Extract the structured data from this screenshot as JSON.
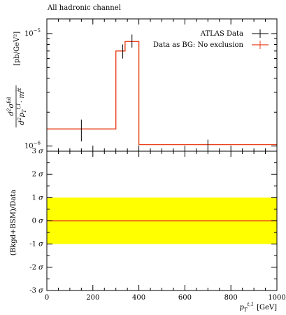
{
  "chart_data": [
    {
      "type": "line",
      "panel": "main",
      "title": "All hadronic channel",
      "xlim": [
        0,
        1000
      ],
      "ylim": [
        9e-07,
        1.35e-05
      ],
      "yscale": "log",
      "ylabel": {
        "num_base": "d",
        "num_sup": "2",
        "num_sigma": "σ",
        "num_sigma_sup": "fid",
        "den_base": "d",
        "den_sup": "2",
        "den_p": "p",
        "den_p_sub": "T",
        "den_p_sup": "t,1",
        "den_dot": "· m",
        "den_m_sup": "t̅t",
        "unit": "[pb/GeV²]"
      },
      "yticks": [
        {
          "value": 1e-06,
          "base": "10",
          "exp": "−6"
        },
        {
          "value": 1e-05,
          "base": "10",
          "exp": "−5"
        }
      ],
      "legend": {
        "position": "top-right",
        "entries": [
          {
            "label": "ATLAS Data",
            "color": "#000000"
          },
          {
            "label": "Data as BG: No exclusion",
            "color": "#e8401c"
          }
        ]
      },
      "series": [
        {
          "name": "ATLAS Data",
          "color": "#000000",
          "points": [
            {
              "x": 150,
              "y": 1.42e-06,
              "ylo": 1.1e-06,
              "yhi": 1.72e-06
            },
            {
              "x": 330,
              "y": 7e-06,
              "ylo": 6e-06,
              "yhi": 8e-06
            },
            {
              "x": 370,
              "y": 8.5e-06,
              "ylo": 7.5e-06,
              "yhi": 9.8e-06
            },
            {
              "x": 700,
              "y": 1.03e-06,
              "ylo": 9.4e-07,
              "yhi": 1.14e-06
            }
          ]
        },
        {
          "name": "Data as BG: No exclusion",
          "color": "#e8401c",
          "bins": [
            {
              "xlo": 0,
              "xhi": 300,
              "y": 1.42e-06
            },
            {
              "xlo": 300,
              "xhi": 340,
              "y": 7e-06
            },
            {
              "xlo": 340,
              "xhi": 400,
              "y": 8.5e-06
            },
            {
              "xlo": 400,
              "xhi": 1000,
              "y": 1.03e-06
            }
          ]
        }
      ]
    },
    {
      "type": "line",
      "panel": "ratio",
      "xlim": [
        0,
        1000
      ],
      "ylim": [
        -3,
        3
      ],
      "ylabel": "(Bkgd+BSM)/Data",
      "xlabel": {
        "base": "p",
        "sub": "T",
        "sup": "t,1",
        "unit": "[GeV]"
      },
      "xticks": [
        0,
        200,
        400,
        600,
        800,
        1000
      ],
      "yticks": [
        {
          "value": 3,
          "label": "3"
        },
        {
          "value": 2,
          "label": "2"
        },
        {
          "value": 1,
          "label": "1"
        },
        {
          "value": 0,
          "label": "0"
        },
        {
          "value": -1,
          "label": "-1"
        },
        {
          "value": -2,
          "label": "-2"
        },
        {
          "value": -3,
          "label": "-3"
        }
      ],
      "sigma_symbol": "σ",
      "band": {
        "low": -1,
        "high": 1,
        "color": "#ffff00"
      },
      "series": [
        {
          "name": "Data as BG: No exclusion",
          "color": "#e8401c",
          "x": [
            0,
            1000
          ],
          "y": [
            0,
            0
          ]
        }
      ]
    }
  ]
}
